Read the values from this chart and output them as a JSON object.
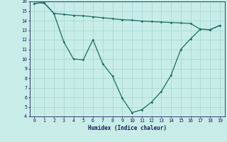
{
  "xlabel": "Humidex (Indice chaleur)",
  "background_color": "#c8ede8",
  "grid_color": "#a8d8d2",
  "line_color": "#1a6b62",
  "series1_x": [
    0,
    1,
    2,
    3,
    4,
    5,
    6,
    7,
    8,
    9,
    10,
    11,
    12,
    13,
    14,
    15,
    16,
    17,
    18,
    19
  ],
  "series1_y": [
    15.8,
    15.85,
    14.75,
    14.65,
    14.55,
    14.5,
    14.4,
    14.3,
    14.2,
    14.1,
    14.05,
    13.95,
    13.9,
    13.85,
    13.8,
    13.75,
    13.7,
    13.1,
    13.05,
    13.5
  ],
  "series2_x": [
    0,
    1,
    2,
    3,
    4,
    5,
    6,
    7,
    8,
    9,
    10,
    11,
    12,
    13,
    14,
    15,
    16,
    17,
    18,
    19
  ],
  "series2_y": [
    15.8,
    15.85,
    14.75,
    11.8,
    10.0,
    9.9,
    12.0,
    9.5,
    8.2,
    5.9,
    4.4,
    4.7,
    5.5,
    6.6,
    8.3,
    11.0,
    12.1,
    13.1,
    13.05,
    13.5
  ],
  "xlim": [
    -0.5,
    19.5
  ],
  "ylim": [
    4,
    16
  ],
  "yticks": [
    4,
    5,
    6,
    7,
    8,
    9,
    10,
    11,
    12,
    13,
    14,
    15,
    16
  ],
  "xticks": [
    0,
    1,
    2,
    3,
    4,
    5,
    6,
    7,
    8,
    9,
    10,
    11,
    12,
    13,
    14,
    15,
    16,
    17,
    18,
    19
  ]
}
